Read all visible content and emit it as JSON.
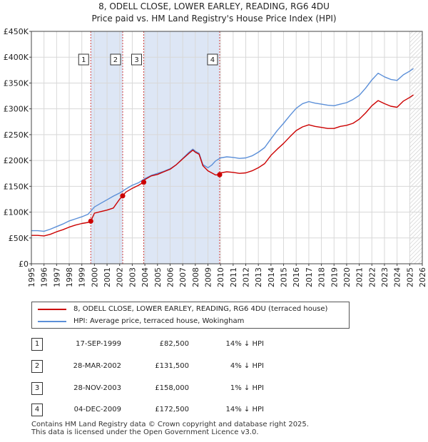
{
  "title_line1": "8, ODELL CLOSE, LOWER EARLEY, READING, RG6 4DU",
  "title_line2": "Price paid vs. HM Land Registry's House Price Index (HPI)",
  "colors": {
    "property": "#cc0000",
    "hpi": "#5b8fd8",
    "shade": "#dde6f5",
    "hatch": "#c8c8c8",
    "grid": "#d8d8d8",
    "vline": "#d04040"
  },
  "legend": {
    "property_label": "8, ODELL CLOSE, LOWER EARLEY, READING, RG6 4DU (terraced house)",
    "hpi_label": "HPI: Average price, terraced house, Wokingham"
  },
  "transactions": [
    {
      "num": "1",
      "date": "17-SEP-1999",
      "price": "£82,500",
      "hpi": "14% ↓ HPI"
    },
    {
      "num": "2",
      "date": "28-MAR-2002",
      "price": "£131,500",
      "hpi": "4% ↓ HPI"
    },
    {
      "num": "3",
      "date": "28-NOV-2003",
      "price": "£158,000",
      "hpi": "1% ↓ HPI"
    },
    {
      "num": "4",
      "date": "04-DEC-2009",
      "price": "£172,500",
      "hpi": "14% ↓ HPI"
    }
  ],
  "footer": {
    "line1": "Contains HM Land Registry data © Crown copyright and database right 2025.",
    "line2": "This data is licensed under the Open Government Licence v3.0."
  },
  "chart_data": {
    "type": "line",
    "title": "8, ODELL CLOSE, LOWER EARLEY, READING, RG6 4DU — Price paid vs. HM Land Registry's House Price Index (HPI)",
    "xlim": [
      1995,
      2026
    ],
    "ylim": [
      0,
      450000
    ],
    "x_ticks": [
      1995,
      1996,
      1997,
      1998,
      1999,
      2000,
      2001,
      2002,
      2003,
      2004,
      2005,
      2006,
      2007,
      2008,
      2009,
      2010,
      2011,
      2012,
      2013,
      2014,
      2015,
      2016,
      2017,
      2018,
      2019,
      2020,
      2021,
      2022,
      2023,
      2024,
      2025,
      2026
    ],
    "y_ticks": [
      {
        "value": 0,
        "label": "£0"
      },
      {
        "value": 50000,
        "label": "£50K"
      },
      {
        "value": 100000,
        "label": "£100K"
      },
      {
        "value": 150000,
        "label": "£150K"
      },
      {
        "value": 200000,
        "label": "£200K"
      },
      {
        "value": 250000,
        "label": "£250K"
      },
      {
        "value": 300000,
        "label": "£300K"
      },
      {
        "value": 350000,
        "label": "£350K"
      },
      {
        "value": 400000,
        "label": "£400K"
      },
      {
        "value": 450000,
        "label": "£450K"
      }
    ],
    "shaded_ranges": [
      [
        1999.71,
        2002.24
      ],
      [
        2003.91,
        2009.93
      ]
    ],
    "hatched_from": 2025.0,
    "sales": [
      {
        "label": "1",
        "x": 1999.71,
        "value": 82500
      },
      {
        "label": "2",
        "x": 2002.24,
        "value": 131500
      },
      {
        "label": "3",
        "x": 2003.91,
        "value": 158000
      },
      {
        "label": "4",
        "x": 2009.93,
        "value": 172500
      }
    ],
    "series": [
      {
        "name": "8, ODELL CLOSE, LOWER EARLEY, READING, RG6 4DU (terraced house)",
        "x": [
          1995.0,
          1995.5,
          1996.0,
          1996.5,
          1997.0,
          1997.5,
          1998.0,
          1998.5,
          1999.0,
          1999.5,
          1999.71,
          2000.0,
          2000.5,
          2001.0,
          2001.5,
          2002.0,
          2002.24,
          2002.5,
          2003.0,
          2003.5,
          2003.91,
          2004.0,
          2004.5,
          2005.0,
          2005.5,
          2006.0,
          2006.5,
          2007.0,
          2007.5,
          2007.8,
          2008.0,
          2008.3,
          2008.6,
          2009.0,
          2009.3,
          2009.6,
          2009.93,
          2010.0,
          2010.5,
          2011.0,
          2011.5,
          2012.0,
          2012.5,
          2013.0,
          2013.5,
          2014.0,
          2014.5,
          2015.0,
          2015.5,
          2016.0,
          2016.5,
          2017.0,
          2017.5,
          2018.0,
          2018.5,
          2019.0,
          2019.5,
          2020.0,
          2020.5,
          2021.0,
          2021.5,
          2022.0,
          2022.5,
          2023.0,
          2023.5,
          2024.0,
          2024.5,
          2025.0,
          2025.3
        ],
        "values": [
          55000,
          55000,
          54000,
          57000,
          62000,
          66000,
          71000,
          75000,
          78000,
          80000,
          82500,
          98000,
          101000,
          104000,
          108000,
          125000,
          131500,
          139000,
          146000,
          152000,
          158000,
          163000,
          170000,
          173000,
          178000,
          183000,
          192000,
          203000,
          214000,
          220000,
          216000,
          212000,
          190000,
          180000,
          176000,
          172000,
          172500,
          176000,
          178000,
          177000,
          175000,
          176000,
          180000,
          186000,
          194000,
          210000,
          222000,
          233000,
          246000,
          258000,
          265000,
          269000,
          266000,
          264000,
          262000,
          262000,
          266000,
          268000,
          272000,
          280000,
          292000,
          306000,
          316000,
          310000,
          305000,
          303000,
          315000,
          322000,
          327000
        ]
      },
      {
        "name": "HPI: Average price, terraced house, Wokingham",
        "x": [
          1995.0,
          1995.5,
          1996.0,
          1996.5,
          1997.0,
          1997.5,
          1998.0,
          1998.5,
          1999.0,
          1999.5,
          2000.0,
          2000.5,
          2001.0,
          2001.5,
          2002.0,
          2002.5,
          2003.0,
          2003.5,
          2004.0,
          2004.5,
          2005.0,
          2005.5,
          2006.0,
          2006.5,
          2007.0,
          2007.5,
          2007.8,
          2008.0,
          2008.3,
          2008.6,
          2009.0,
          2009.3,
          2009.6,
          2010.0,
          2010.5,
          2011.0,
          2011.5,
          2012.0,
          2012.5,
          2013.0,
          2013.5,
          2014.0,
          2014.5,
          2015.0,
          2015.5,
          2016.0,
          2016.5,
          2017.0,
          2017.5,
          2018.0,
          2018.5,
          2019.0,
          2019.5,
          2020.0,
          2020.5,
          2021.0,
          2021.5,
          2022.0,
          2022.5,
          2023.0,
          2023.5,
          2024.0,
          2024.5,
          2025.0,
          2025.3
        ],
        "values": [
          64000,
          64000,
          63000,
          67000,
          72000,
          77000,
          83000,
          87000,
          91000,
          96000,
          110000,
          117000,
          124000,
          131000,
          137000,
          145000,
          152000,
          157000,
          165000,
          171000,
          175000,
          179000,
          184000,
          192000,
          204000,
          216000,
          222000,
          218000,
          214000,
          192000,
          186000,
          191000,
          199000,
          205000,
          207000,
          206000,
          204000,
          205000,
          209000,
          216000,
          225000,
          242000,
          258000,
          272000,
          287000,
          301000,
          310000,
          314000,
          311000,
          309000,
          307000,
          306000,
          309000,
          312000,
          318000,
          326000,
          340000,
          356000,
          369000,
          362000,
          357000,
          355000,
          366000,
          373000,
          378000
        ]
      }
    ]
  }
}
